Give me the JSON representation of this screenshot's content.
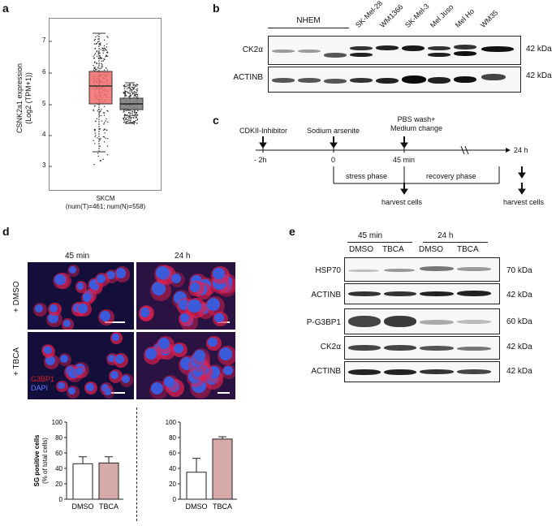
{
  "panels": {
    "a": "a",
    "b": "b",
    "c": "c",
    "d": "d",
    "e": "e"
  },
  "panel_a": {
    "ylabel_line1": "CSNK2a1 expression",
    "ylabel_line2": "(Log2 (TPM+1))",
    "y_ticks": [
      "7",
      "6",
      "5",
      "4",
      "3"
    ],
    "xlabel": "SKCM",
    "xlabel_sub": "(num(T)=461; num(N)=558)",
    "colors": {
      "tumor": "#f26b6b",
      "normal": "#7f7f7f"
    }
  },
  "panel_b": {
    "group_label": "NHEM",
    "lanes": [
      "SK-Mel-28",
      "WM1366",
      "SK-Mel-3",
      "Mel Juso",
      "Mel Ho",
      "WM35"
    ],
    "rows": [
      {
        "label": "CK2α",
        "kda": "42 kDa"
      },
      {
        "label": "ACTINB",
        "kda": "42 kDa"
      }
    ]
  },
  "panel_c": {
    "events": {
      "inhibitor": "CDKII-Inhibitor",
      "arsenite": "Sodium arsenite",
      "wash_line1": "PBS wash+",
      "wash_line2": "Medium change"
    },
    "times": {
      "t1": "- 2h",
      "t2": "0",
      "t3": "45 min",
      "t4": "24 h"
    },
    "phases": {
      "stress": "stress phase",
      "recovery": "recovery phase"
    },
    "harvest_1": "harvest cells",
    "harvest_2": "harvest cells"
  },
  "panel_d": {
    "col_labels": [
      "45 min",
      "24 h"
    ],
    "row_labels": [
      "+ DMSO",
      "+ TBCA"
    ],
    "stain_1": "G3BP1",
    "stain_2": "DAPI",
    "colors": {
      "g3bp1": "#e02020",
      "dapi": "#3b5bdb"
    }
  },
  "panel_e": {
    "group_labels": [
      "45 min",
      "24 h"
    ],
    "lanes": [
      "DMSO",
      "TBCA",
      "DMSO",
      "TBCA"
    ],
    "rows": [
      {
        "label": "HSP70",
        "kda": "70 kDa"
      },
      {
        "label": "ACTINB",
        "kda": "42 kDa"
      },
      {
        "label": "P-G3BP1",
        "kda": "60 kDa"
      },
      {
        "label": "CK2α",
        "kda": "42 kDa"
      },
      {
        "label": "ACTINB",
        "kda": "42 kDa"
      }
    ]
  },
  "chart_data": [
    {
      "type": "bar",
      "categories": [
        "DMSO",
        "TBCA"
      ],
      "values": [
        46,
        47
      ],
      "errors": [
        9,
        8
      ],
      "ylabel": "SG positive cells\n(% of total cells)",
      "ylim": [
        0,
        100
      ],
      "y_ticks": [
        "0",
        "20",
        "40",
        "60",
        "80",
        "100"
      ],
      "colors": [
        "#ffffff",
        "#d6aaa8"
      ]
    },
    {
      "type": "bar",
      "categories": [
        "DMSO",
        "TBCA"
      ],
      "values": [
        35,
        78
      ],
      "errors": [
        18,
        3
      ],
      "ylim": [
        0,
        100
      ],
      "y_ticks": [
        "0",
        "20",
        "40",
        "60",
        "80",
        "100"
      ],
      "colors": [
        "#ffffff",
        "#d6aaa8"
      ]
    }
  ]
}
